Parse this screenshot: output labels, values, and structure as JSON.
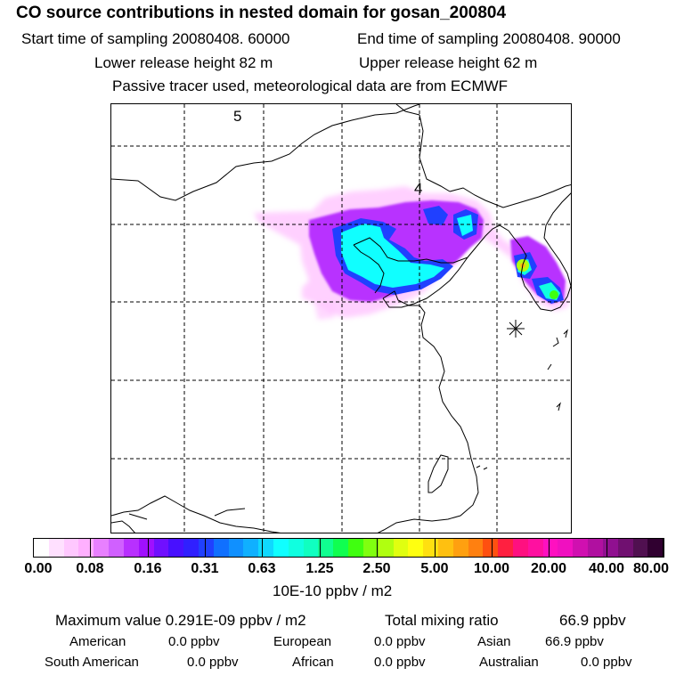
{
  "header": {
    "title": "CO  source contributions in nested domain for gosan_200804",
    "start_time": "Start time of sampling 20080408. 60000",
    "end_time": "End time of sampling 20080408. 90000",
    "lower_release": "Lower release height   82 m",
    "upper_release": "Upper release height   62 m",
    "tracer_info": "Passive tracer used, meteorological data are from ECMWF"
  },
  "map": {
    "markers": [
      {
        "label": "5"
      },
      {
        "label": "4"
      }
    ],
    "receptor_symbol": "asterisk-station-icon"
  },
  "legend": {
    "tick_labels": [
      "0.00",
      "0.08",
      "0.16",
      "0.31",
      "0.63",
      "1.25",
      "2.50",
      "5.00",
      "10.00",
      "20.00",
      "40.00",
      "80.00"
    ],
    "colors": [
      "#ffffff",
      "#ffe0ff",
      "#ffc8ff",
      "#ffb0ff",
      "#e880ff",
      "#d060ff",
      "#b830ff",
      "#a010ff",
      "#7010ff",
      "#4810ff",
      "#3020ff",
      "#2040ff",
      "#1070ff",
      "#1090ff",
      "#10b0ff",
      "#10d8ff",
      "#10ffff",
      "#10ffe0",
      "#10ffc0",
      "#10ff90",
      "#10ff50",
      "#40ff10",
      "#80ff10",
      "#b0ff10",
      "#e0ff10",
      "#ffff10",
      "#ffe010",
      "#ffc010",
      "#ffa010",
      "#ff8010",
      "#ff5010",
      "#ff2040",
      "#ff1080",
      "#ff10a0",
      "#ff10c0",
      "#f010c0",
      "#d010b0",
      "#b010a0",
      "#901090",
      "#701070",
      "#501050",
      "#300030"
    ],
    "units": "10E-10 ppbv / m2"
  },
  "stats": {
    "maximum": "Maximum value  0.291E-09 ppbv / m2",
    "total": "Total mixing ratio",
    "total_value": "66.9 ppbv",
    "regions": [
      {
        "name": "American",
        "value": "0.0 ppbv"
      },
      {
        "name": "European",
        "value": "0.0 ppbv"
      },
      {
        "name": "Asian",
        "value": "66.9 ppbv"
      },
      {
        "name": "South American",
        "value": "0.0 ppbv"
      },
      {
        "name": "African",
        "value": "0.0 ppbv"
      },
      {
        "name": "Australian",
        "value": "0.0 ppbv"
      }
    ]
  }
}
